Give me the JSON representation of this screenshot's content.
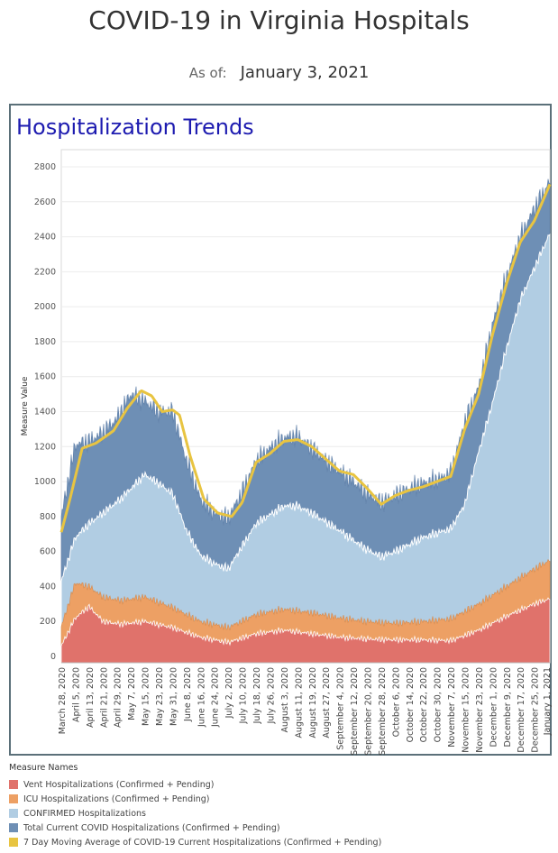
{
  "page": {
    "title": "COVID-19 in Virginia Hospitals",
    "asof_label": "As of:",
    "asof_value": "January 3, 2021",
    "panel_title": "Hospitalization Trends"
  },
  "chart_data": {
    "type": "area",
    "title": "Hospitalization Trends",
    "xlabel": "",
    "ylabel": "Measure Value",
    "ylim": [
      0,
      2850
    ],
    "yticks": [
      0,
      200,
      400,
      600,
      800,
      1000,
      1200,
      1400,
      1600,
      1800,
      2000,
      2200,
      2400,
      2600,
      2800
    ],
    "grid": true,
    "legend_position": "bottom-left",
    "legend_title": "Measure Names",
    "x_start": "2020-03-28",
    "x_end": "2021-01-03",
    "x_ticks": [
      "March 28, 2020",
      "April 5, 2020",
      "April 13, 2020",
      "April 21, 2020",
      "April 29, 2020",
      "May 7, 2020",
      "May 15, 2020",
      "May 23, 2020",
      "May 31, 2020",
      "June 8, 2020",
      "June 16, 2020",
      "June 24, 2020",
      "July 2, 2020",
      "July 10, 2020",
      "July 18, 2020",
      "July 26, 2020",
      "August 3, 2020",
      "August 11, 2020",
      "August 19, 2020",
      "August 27, 2020",
      "September 4, 2020",
      "September 12, 2020",
      "September 20, 2020",
      "September 28, 2020",
      "October 6, 2020",
      "October 14, 2020",
      "October 22, 2020",
      "October 30, 2020",
      "November 7, 2020",
      "November 15, 2020",
      "November 23, 2020",
      "December 1, 2020",
      "December 9, 2020",
      "December 17, 2020",
      "December 25, 2020",
      "January 1, 2021"
    ],
    "series": [
      {
        "name": "Vent Hospitalizations (Confirmed + Pending)",
        "color": "#e0726b",
        "points": [
          [
            "2020-03-28",
            60
          ],
          [
            "2020-04-05",
            220
          ],
          [
            "2020-04-13",
            285
          ],
          [
            "2020-04-21",
            200
          ],
          [
            "2020-05-01",
            185
          ],
          [
            "2020-05-15",
            200
          ],
          [
            "2020-05-31",
            165
          ],
          [
            "2020-06-16",
            110
          ],
          [
            "2020-07-02",
            80
          ],
          [
            "2020-07-18",
            130
          ],
          [
            "2020-08-03",
            150
          ],
          [
            "2020-08-19",
            130
          ],
          [
            "2020-09-04",
            110
          ],
          [
            "2020-09-20",
            100
          ],
          [
            "2020-10-06",
            95
          ],
          [
            "2020-10-22",
            95
          ],
          [
            "2020-11-07",
            90
          ],
          [
            "2020-11-23",
            150
          ],
          [
            "2020-12-09",
            230
          ],
          [
            "2020-12-25",
            300
          ],
          [
            "2021-01-03",
            330
          ]
        ]
      },
      {
        "name": "ICU Hospitalizations (Confirmed + Pending)",
        "color": "#eda064",
        "points": [
          [
            "2020-03-28",
            170
          ],
          [
            "2020-04-05",
            420
          ],
          [
            "2020-04-13",
            400
          ],
          [
            "2020-04-21",
            340
          ],
          [
            "2020-05-01",
            320
          ],
          [
            "2020-05-15",
            340
          ],
          [
            "2020-05-31",
            280
          ],
          [
            "2020-06-16",
            200
          ],
          [
            "2020-07-02",
            165
          ],
          [
            "2020-07-18",
            240
          ],
          [
            "2020-08-03",
            270
          ],
          [
            "2020-08-19",
            250
          ],
          [
            "2020-09-04",
            220
          ],
          [
            "2020-09-20",
            200
          ],
          [
            "2020-10-06",
            190
          ],
          [
            "2020-10-22",
            200
          ],
          [
            "2020-11-07",
            215
          ],
          [
            "2020-11-23",
            300
          ],
          [
            "2020-12-09",
            400
          ],
          [
            "2020-12-25",
            500
          ],
          [
            "2021-01-03",
            550
          ]
        ]
      },
      {
        "name": "CONFIRMED Hospitalizations",
        "color": "#b1cde3",
        "points": [
          [
            "2020-03-28",
            430
          ],
          [
            "2020-04-05",
            680
          ],
          [
            "2020-04-13",
            760
          ],
          [
            "2020-04-21",
            820
          ],
          [
            "2020-05-01",
            900
          ],
          [
            "2020-05-15",
            1040
          ],
          [
            "2020-05-23",
            990
          ],
          [
            "2020-05-31",
            930
          ],
          [
            "2020-06-08",
            720
          ],
          [
            "2020-06-16",
            580
          ],
          [
            "2020-06-24",
            530
          ],
          [
            "2020-07-02",
            500
          ],
          [
            "2020-07-18",
            760
          ],
          [
            "2020-08-03",
            860
          ],
          [
            "2020-08-11",
            860
          ],
          [
            "2020-08-19",
            820
          ],
          [
            "2020-09-04",
            720
          ],
          [
            "2020-09-20",
            610
          ],
          [
            "2020-09-28",
            570
          ],
          [
            "2020-10-06",
            600
          ],
          [
            "2020-10-22",
            680
          ],
          [
            "2020-11-07",
            730
          ],
          [
            "2020-11-15",
            870
          ],
          [
            "2020-11-23",
            1170
          ],
          [
            "2020-12-01",
            1450
          ],
          [
            "2020-12-09",
            1760
          ],
          [
            "2020-12-17",
            2040
          ],
          [
            "2020-12-25",
            2220
          ],
          [
            "2021-01-03",
            2420
          ]
        ]
      },
      {
        "name": "Total Current COVID Hospitalizations (Confirmed + Pending)",
        "color": "#6e8fb5",
        "points": [
          [
            "2020-03-28",
            800
          ],
          [
            "2020-04-05",
            1210
          ],
          [
            "2020-04-13",
            1230
          ],
          [
            "2020-04-21",
            1280
          ],
          [
            "2020-04-29",
            1360
          ],
          [
            "2020-05-07",
            1500
          ],
          [
            "2020-05-15",
            1460
          ],
          [
            "2020-05-23",
            1400
          ],
          [
            "2020-05-31",
            1400
          ],
          [
            "2020-06-08",
            1120
          ],
          [
            "2020-06-16",
            900
          ],
          [
            "2020-06-24",
            820
          ],
          [
            "2020-07-02",
            790
          ],
          [
            "2020-07-10",
            940
          ],
          [
            "2020-07-18",
            1120
          ],
          [
            "2020-07-26",
            1190
          ],
          [
            "2020-08-03",
            1250
          ],
          [
            "2020-08-11",
            1260
          ],
          [
            "2020-08-19",
            1190
          ],
          [
            "2020-08-27",
            1120
          ],
          [
            "2020-09-04",
            1060
          ],
          [
            "2020-09-12",
            1000
          ],
          [
            "2020-09-20",
            930
          ],
          [
            "2020-09-28",
            880
          ],
          [
            "2020-10-06",
            920
          ],
          [
            "2020-10-14",
            960
          ],
          [
            "2020-10-22",
            990
          ],
          [
            "2020-10-30",
            1010
          ],
          [
            "2020-11-07",
            1050
          ],
          [
            "2020-11-15",
            1340
          ],
          [
            "2020-11-23",
            1540
          ],
          [
            "2020-12-01",
            1900
          ],
          [
            "2020-12-09",
            2170
          ],
          [
            "2020-12-17",
            2400
          ],
          [
            "2020-12-25",
            2560
          ],
          [
            "2021-01-03",
            2720
          ]
        ]
      },
      {
        "name": "7 Day Moving Average of COVID-19 Current Hospitalizations (Confirmed + Pending)",
        "color": "#e8c441",
        "points": [
          [
            "2020-03-28",
            710
          ],
          [
            "2020-04-02",
            900
          ],
          [
            "2020-04-09",
            1190
          ],
          [
            "2020-04-17",
            1220
          ],
          [
            "2020-04-27",
            1290
          ],
          [
            "2020-05-05",
            1420
          ],
          [
            "2020-05-13",
            1520
          ],
          [
            "2020-05-19",
            1490
          ],
          [
            "2020-05-25",
            1400
          ],
          [
            "2020-05-31",
            1410
          ],
          [
            "2020-06-04",
            1380
          ],
          [
            "2020-06-10",
            1150
          ],
          [
            "2020-06-18",
            900
          ],
          [
            "2020-06-26",
            820
          ],
          [
            "2020-07-04",
            800
          ],
          [
            "2020-07-10",
            880
          ],
          [
            "2020-07-18",
            1110
          ],
          [
            "2020-07-26",
            1160
          ],
          [
            "2020-08-03",
            1230
          ],
          [
            "2020-08-11",
            1240
          ],
          [
            "2020-08-19",
            1200
          ],
          [
            "2020-08-27",
            1130
          ],
          [
            "2020-09-04",
            1060
          ],
          [
            "2020-09-12",
            1040
          ],
          [
            "2020-09-20",
            960
          ],
          [
            "2020-09-28",
            870
          ],
          [
            "2020-10-06",
            920
          ],
          [
            "2020-10-14",
            950
          ],
          [
            "2020-10-22",
            970
          ],
          [
            "2020-10-30",
            1000
          ],
          [
            "2020-11-07",
            1030
          ],
          [
            "2020-11-15",
            1300
          ],
          [
            "2020-11-23",
            1500
          ],
          [
            "2020-12-01",
            1840
          ],
          [
            "2020-12-09",
            2130
          ],
          [
            "2020-12-17",
            2370
          ],
          [
            "2020-12-25",
            2490
          ],
          [
            "2021-01-03",
            2700
          ]
        ]
      }
    ]
  }
}
